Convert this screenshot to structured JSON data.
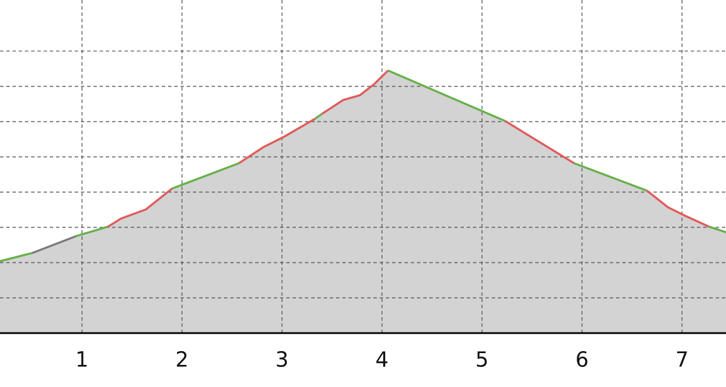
{
  "chart_data": {
    "type": "area",
    "xlim": [
      0.18,
      7.44
    ],
    "xticks": [
      1,
      2,
      3,
      4,
      5,
      6,
      7
    ],
    "ylim": [
      0,
      9.45
    ],
    "yticks": [
      1,
      2,
      3,
      4,
      5,
      6,
      7,
      8
    ],
    "grid": true,
    "fill": "#d3d3d3",
    "series": [
      {
        "color": "#66b04a",
        "x": [
          0.18,
          0.5
        ],
        "values": [
          2.04,
          2.27
        ]
      },
      {
        "color": "#7a7a7a",
        "x": [
          0.5,
          0.94
        ],
        "values": [
          2.27,
          2.75
        ]
      },
      {
        "color": "#66b04a",
        "x": [
          0.94,
          1.26
        ],
        "values": [
          2.75,
          3.02
        ]
      },
      {
        "color": "#e05a5a",
        "x": [
          1.26,
          1.39,
          1.64,
          1.9
        ],
        "values": [
          3.02,
          3.25,
          3.51,
          4.1
        ]
      },
      {
        "color": "#66b04a",
        "x": [
          1.9,
          2.57
        ],
        "values": [
          4.1,
          4.82
        ]
      },
      {
        "color": "#e05a5a",
        "x": [
          2.57,
          2.81,
          3.02,
          3.33
        ],
        "values": [
          4.82,
          5.27,
          5.57,
          6.08
        ]
      },
      {
        "color": "#66b04a",
        "x": [
          3.33,
          3.4
        ],
        "values": [
          6.08,
          6.22
        ]
      },
      {
        "color": "#e05a5a",
        "x": [
          3.4,
          3.61,
          3.78,
          3.92,
          4.06
        ],
        "values": [
          6.22,
          6.61,
          6.75,
          7.06,
          7.45
        ]
      },
      {
        "color": "#66b04a",
        "x": [
          4.06,
          5.23
        ],
        "values": [
          7.45,
          6.02
        ]
      },
      {
        "color": "#e05a5a",
        "x": [
          5.23,
          5.92
        ],
        "values": [
          6.02,
          4.82
        ]
      },
      {
        "color": "#66b04a",
        "x": [
          5.92,
          6.65
        ],
        "values": [
          4.82,
          4.04
        ]
      },
      {
        "color": "#e05a5a",
        "x": [
          6.65,
          6.86,
          7.03,
          7.27
        ],
        "values": [
          4.04,
          3.57,
          3.33,
          3.02
        ]
      },
      {
        "color": "#66b04a",
        "x": [
          7.27,
          7.44
        ],
        "values": [
          3.02,
          2.86
        ]
      }
    ]
  }
}
